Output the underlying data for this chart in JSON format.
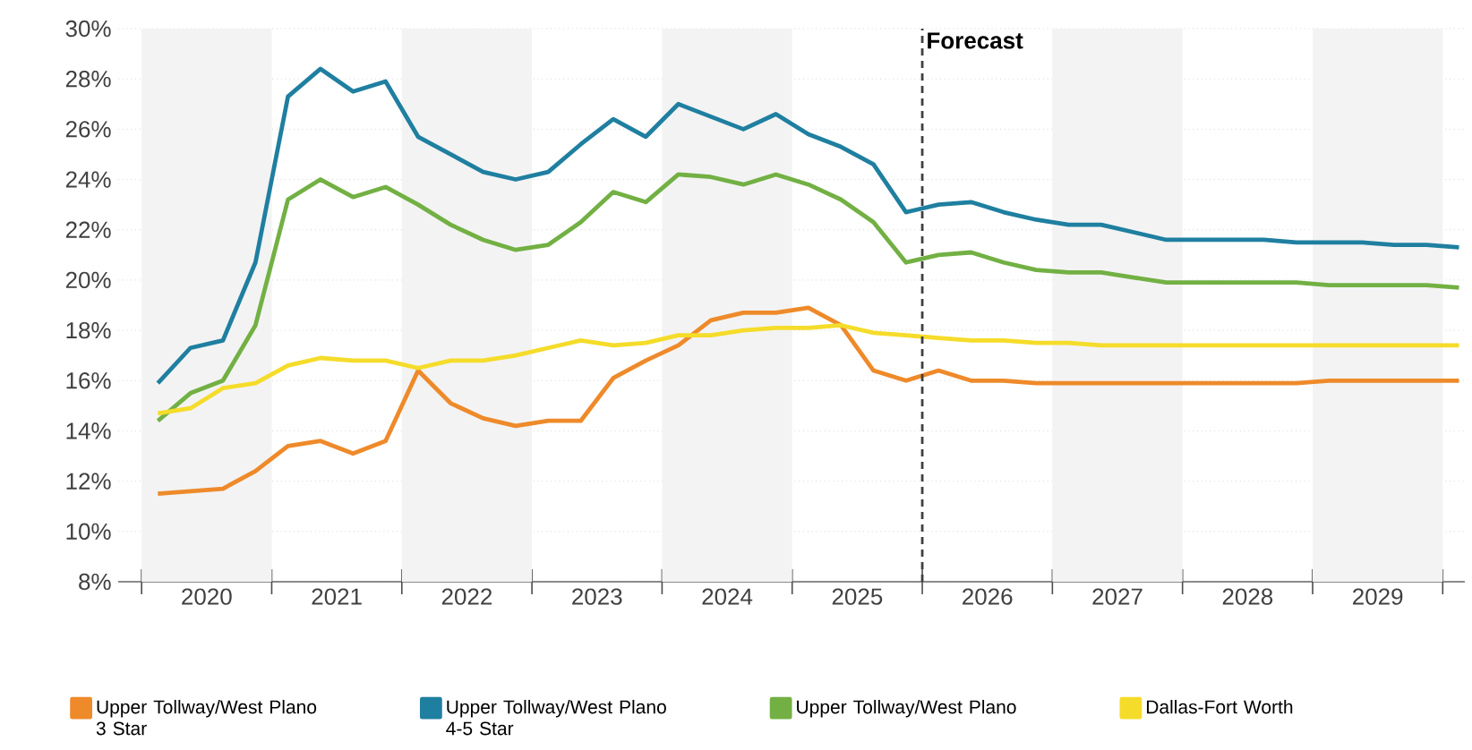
{
  "chart_data": {
    "type": "line",
    "x": [
      2020.125,
      2020.375,
      2020.625,
      2020.875,
      2021.125,
      2021.375,
      2021.625,
      2021.875,
      2022.125,
      2022.375,
      2022.625,
      2022.875,
      2023.125,
      2023.375,
      2023.625,
      2023.875,
      2024.125,
      2024.375,
      2024.625,
      2024.875,
      2025.125,
      2025.375,
      2025.625,
      2025.875,
      2026.125,
      2026.375,
      2026.625,
      2026.875,
      2027.125,
      2027.375,
      2027.625,
      2027.875,
      2028.125,
      2028.375,
      2028.625,
      2028.875,
      2029.125,
      2029.375,
      2029.625,
      2029.875,
      2030.125
    ],
    "series": [
      {
        "name": "Upper Tollway/West Plano 3 Star",
        "color": "#ee8a2a",
        "values": [
          11.5,
          11.6,
          11.7,
          12.4,
          13.4,
          13.6,
          13.1,
          13.6,
          16.4,
          15.1,
          14.5,
          14.2,
          14.4,
          14.4,
          16.1,
          16.8,
          17.4,
          18.4,
          18.7,
          18.7,
          18.9,
          18.2,
          16.4,
          16.0,
          16.4,
          16.0,
          16.0,
          15.9,
          15.9,
          15.9,
          15.9,
          15.9,
          15.9,
          15.9,
          15.9,
          15.9,
          16.0,
          16.0,
          16.0,
          16.0,
          16.0
        ]
      },
      {
        "name": "Upper Tollway/West Plano 4-5 Star",
        "color": "#1f7fa0",
        "values": [
          15.9,
          17.3,
          17.6,
          20.7,
          27.3,
          28.4,
          27.5,
          27.9,
          25.7,
          25.0,
          24.3,
          24.0,
          24.3,
          25.4,
          26.4,
          25.7,
          27.0,
          26.5,
          26.0,
          26.6,
          25.8,
          25.3,
          24.6,
          22.7,
          23.0,
          23.1,
          22.7,
          22.4,
          22.2,
          22.2,
          21.9,
          21.6,
          21.6,
          21.6,
          21.6,
          21.5,
          21.5,
          21.5,
          21.4,
          21.4,
          21.3
        ]
      },
      {
        "name": "Upper Tollway/West Plano",
        "color": "#72b043",
        "values": [
          14.4,
          15.5,
          16.0,
          18.2,
          23.2,
          24.0,
          23.3,
          23.7,
          23.0,
          22.2,
          21.6,
          21.2,
          21.4,
          22.3,
          23.5,
          23.1,
          24.2,
          24.1,
          23.8,
          24.2,
          23.8,
          23.2,
          22.3,
          20.7,
          21.0,
          21.1,
          20.7,
          20.4,
          20.3,
          20.3,
          20.1,
          19.9,
          19.9,
          19.9,
          19.9,
          19.9,
          19.8,
          19.8,
          19.8,
          19.8,
          19.7
        ]
      },
      {
        "name": "Dallas-Fort Worth",
        "color": "#f5dc2a",
        "values": [
          14.7,
          14.9,
          15.7,
          15.9,
          16.6,
          16.9,
          16.8,
          16.8,
          16.5,
          16.8,
          16.8,
          17.0,
          17.3,
          17.6,
          17.4,
          17.5,
          17.8,
          17.8,
          18.0,
          18.1,
          18.1,
          18.2,
          17.9,
          17.8,
          17.7,
          17.6,
          17.6,
          17.5,
          17.5,
          17.4,
          17.4,
          17.4,
          17.4,
          17.4,
          17.4,
          17.4,
          17.4,
          17.4,
          17.4,
          17.4,
          17.4
        ]
      }
    ],
    "xlim": [
      2019.82,
      2030.17
    ],
    "xticks": [
      {
        "value": 2020,
        "label": null
      },
      {
        "value": 2020.5,
        "label": "2020"
      },
      {
        "value": 2021,
        "label": null
      },
      {
        "value": 2021.5,
        "label": "2021"
      },
      {
        "value": 2022,
        "label": null
      },
      {
        "value": 2022.5,
        "label": "2022"
      },
      {
        "value": 2023,
        "label": null
      },
      {
        "value": 2023.5,
        "label": "2023"
      },
      {
        "value": 2024,
        "label": null
      },
      {
        "value": 2024.5,
        "label": "2024"
      },
      {
        "value": 2025,
        "label": null
      },
      {
        "value": 2025.5,
        "label": "2025"
      },
      {
        "value": 2026,
        "label": null
      },
      {
        "value": 2026.5,
        "label": "2026"
      },
      {
        "value": 2027,
        "label": null
      },
      {
        "value": 2027.5,
        "label": "2027"
      },
      {
        "value": 2028,
        "label": null
      },
      {
        "value": 2028.5,
        "label": "2028"
      },
      {
        "value": 2029,
        "label": null
      },
      {
        "value": 2029.5,
        "label": "2029"
      },
      {
        "value": 2030,
        "label": null
      }
    ],
    "ylim": [
      8,
      30
    ],
    "yticks": [
      {
        "value": 8,
        "label": "8%"
      },
      {
        "value": 10,
        "label": "10%"
      },
      {
        "value": 12,
        "label": "12%"
      },
      {
        "value": 14,
        "label": "14%"
      },
      {
        "value": 16,
        "label": "16%"
      },
      {
        "value": 18,
        "label": "18%"
      },
      {
        "value": 20,
        "label": "20%"
      },
      {
        "value": 22,
        "label": "22%"
      },
      {
        "value": 24,
        "label": "24%"
      },
      {
        "value": 26,
        "label": "26%"
      },
      {
        "value": 28,
        "label": "28%"
      },
      {
        "value": 30,
        "label": "30%"
      }
    ],
    "ref_lines": [
      {
        "axis": "x",
        "value": 2026,
        "label": "Forecast",
        "color": "#404040",
        "line_style": "dashed"
      }
    ],
    "bands": [
      {
        "axis": "x",
        "from": 2020,
        "to": 2021,
        "color": "#f3f3f3"
      },
      {
        "axis": "x",
        "from": 2022,
        "to": 2023,
        "color": "#f3f3f3"
      },
      {
        "axis": "x",
        "from": 2024,
        "to": 2025,
        "color": "#f3f3f3"
      },
      {
        "axis": "x",
        "from": 2027,
        "to": 2028,
        "color": "#f3f3f3"
      },
      {
        "axis": "x",
        "from": 2029,
        "to": 2030,
        "color": "#f3f3f3"
      }
    ],
    "grid": "y",
    "legend": "bottom",
    "marker": "none",
    "line_style": "solid"
  }
}
